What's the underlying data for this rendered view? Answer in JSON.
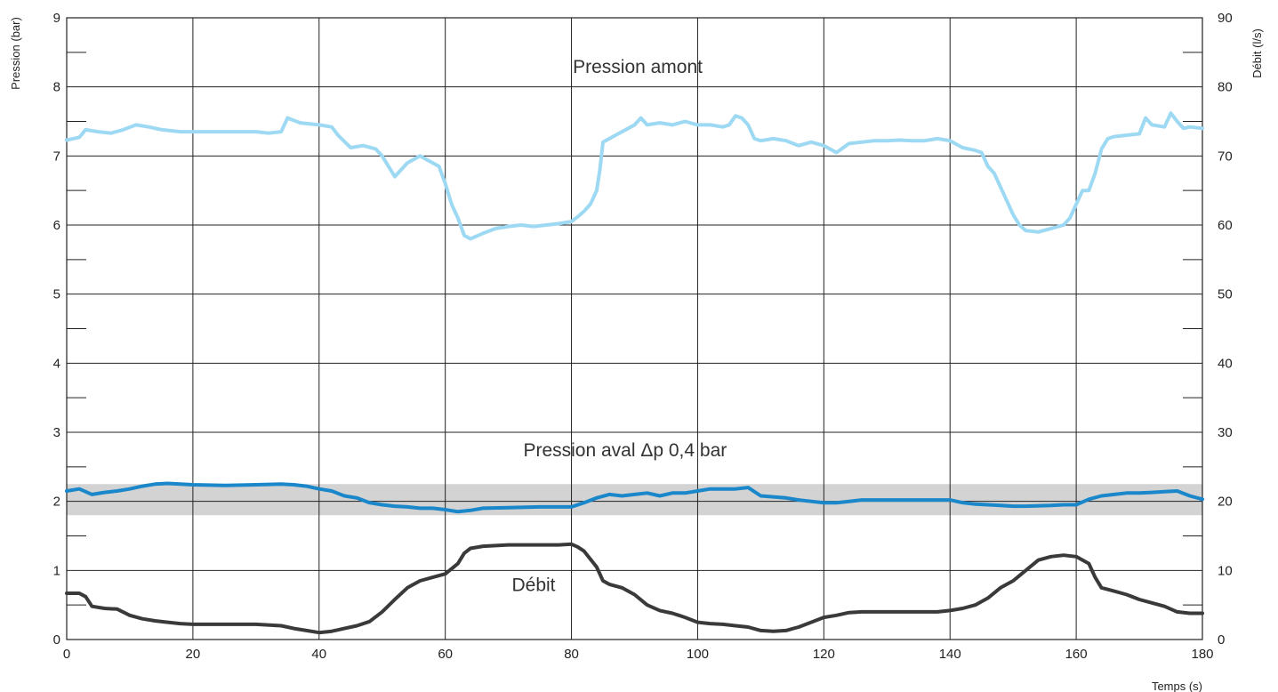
{
  "chart_data": {
    "type": "line",
    "xlabel": "Temps (s)",
    "ylabel_left": "Pression (bar)",
    "ylabel_right": "Débit (l/s)",
    "xlim": [
      0,
      180
    ],
    "ylim_left": [
      0,
      9
    ],
    "ylim_right": [
      0,
      90
    ],
    "x_ticks": [
      "0",
      "20",
      "40",
      "60",
      "80",
      "100",
      "120",
      "140",
      "160",
      "180"
    ],
    "y_left_ticks": [
      "0",
      "1",
      "2",
      "3",
      "4",
      "5",
      "6",
      "7",
      "8",
      "9"
    ],
    "y_right_ticks": [
      "0",
      "10",
      "20",
      "30",
      "40",
      "50",
      "60",
      "70",
      "80",
      "90"
    ],
    "grid": true,
    "band": {
      "from": 1.8,
      "to": 2.25,
      "color": "#d3d3d3"
    },
    "annotations": [
      {
        "id": "amont",
        "text": "Pression amont",
        "x": 90.5,
        "y": 8.2
      },
      {
        "id": "aval",
        "text": "Pression aval Δp 0,4 bar",
        "x": 88.5,
        "y": 2.65
      },
      {
        "id": "debit",
        "text": "Débit",
        "x": 74,
        "y": 0.7
      }
    ],
    "series": [
      {
        "key": "amont",
        "axis": "left",
        "color": "#9dd9f3",
        "x": [
          0,
          2,
          3,
          5,
          7,
          9,
          11,
          13,
          15,
          18,
          20,
          25,
          30,
          32,
          34,
          35,
          37,
          40,
          42,
          43,
          45,
          47,
          49,
          50,
          51,
          52,
          53,
          54,
          55,
          56,
          57,
          58,
          59,
          60,
          61,
          62,
          63,
          64,
          66,
          68,
          70,
          72,
          74,
          76,
          78,
          80,
          81,
          82,
          83,
          84,
          84.5,
          85,
          86,
          87,
          88,
          89,
          90,
          91,
          92,
          94,
          96,
          98,
          100,
          102,
          104,
          105,
          106,
          107,
          108,
          109,
          110,
          112,
          114,
          116,
          118,
          120,
          122,
          124,
          126,
          128,
          130,
          132,
          134,
          136,
          138,
          140,
          142,
          144,
          145,
          146,
          147,
          148,
          149,
          150,
          151,
          152,
          154,
          156,
          158,
          159,
          160,
          161,
          162,
          163,
          164,
          165,
          166,
          168,
          170,
          171,
          172,
          174,
          175,
          176,
          177,
          178,
          180
        ],
        "y": [
          7.23,
          7.27,
          7.38,
          7.35,
          7.33,
          7.38,
          7.45,
          7.42,
          7.38,
          7.35,
          7.35,
          7.35,
          7.35,
          7.33,
          7.35,
          7.55,
          7.48,
          7.45,
          7.42,
          7.3,
          7.12,
          7.15,
          7.1,
          7.0,
          6.85,
          6.7,
          6.8,
          6.9,
          6.95,
          7.0,
          6.95,
          6.9,
          6.85,
          6.6,
          6.3,
          6.1,
          5.85,
          5.8,
          5.88,
          5.95,
          5.98,
          6.0,
          5.98,
          6.0,
          6.02,
          6.05,
          6.12,
          6.2,
          6.3,
          6.5,
          6.8,
          7.2,
          7.25,
          7.3,
          7.35,
          7.4,
          7.45,
          7.55,
          7.45,
          7.48,
          7.45,
          7.5,
          7.45,
          7.45,
          7.42,
          7.45,
          7.58,
          7.55,
          7.45,
          7.25,
          7.22,
          7.25,
          7.22,
          7.15,
          7.2,
          7.15,
          7.05,
          7.18,
          7.2,
          7.22,
          7.22,
          7.23,
          7.22,
          7.22,
          7.25,
          7.22,
          7.12,
          7.08,
          7.05,
          6.85,
          6.75,
          6.55,
          6.35,
          6.15,
          6.0,
          5.92,
          5.9,
          5.95,
          6.0,
          6.1,
          6.3,
          6.5,
          6.5,
          6.75,
          7.1,
          7.25,
          7.28,
          7.3,
          7.32,
          7.55,
          7.45,
          7.42,
          7.62,
          7.5,
          7.4,
          7.42,
          7.4
        ]
      },
      {
        "key": "aval",
        "axis": "left",
        "color": "#1b87cb",
        "x": [
          0,
          2,
          4,
          6,
          8,
          10,
          12,
          14,
          16,
          18,
          20,
          25,
          30,
          34,
          36,
          38,
          40,
          42,
          44,
          46,
          48,
          50,
          52,
          54,
          56,
          58,
          60,
          62,
          64,
          66,
          70,
          75,
          80,
          82,
          84,
          86,
          88,
          90,
          92,
          94,
          96,
          98,
          100,
          102,
          104,
          106,
          108,
          110,
          114,
          116,
          118,
          120,
          122,
          124,
          126,
          130,
          134,
          138,
          140,
          142,
          144,
          146,
          148,
          150,
          152,
          156,
          158,
          160,
          162,
          164,
          166,
          168,
          170,
          172,
          174,
          176,
          178,
          180
        ],
        "y": [
          2.15,
          2.18,
          2.1,
          2.13,
          2.15,
          2.18,
          2.22,
          2.25,
          2.26,
          2.25,
          2.24,
          2.23,
          2.24,
          2.25,
          2.24,
          2.22,
          2.18,
          2.15,
          2.08,
          2.05,
          1.98,
          1.95,
          1.93,
          1.92,
          1.9,
          1.9,
          1.88,
          1.85,
          1.87,
          1.9,
          1.91,
          1.92,
          1.92,
          1.98,
          2.05,
          2.1,
          2.08,
          2.1,
          2.12,
          2.08,
          2.12,
          2.12,
          2.15,
          2.18,
          2.18,
          2.18,
          2.2,
          2.08,
          2.05,
          2.02,
          2.0,
          1.98,
          1.98,
          2.0,
          2.02,
          2.02,
          2.02,
          2.02,
          2.02,
          1.98,
          1.96,
          1.95,
          1.94,
          1.93,
          1.93,
          1.94,
          1.95,
          1.95,
          2.03,
          2.08,
          2.1,
          2.12,
          2.12,
          2.13,
          2.14,
          2.15,
          2.08,
          2.03
        ]
      },
      {
        "key": "debit",
        "axis": "right",
        "color": "#3a3a3a",
        "x": [
          0,
          2,
          3,
          4,
          6,
          8,
          10,
          12,
          14,
          16,
          18,
          20,
          25,
          30,
          34,
          36,
          38,
          40,
          42,
          44,
          46,
          48,
          50,
          52,
          54,
          56,
          58,
          60,
          62,
          63,
          64,
          66,
          68,
          70,
          72,
          74,
          76,
          78,
          80,
          81,
          82,
          84,
          85,
          86,
          88,
          90,
          92,
          94,
          96,
          98,
          100,
          102,
          104,
          106,
          108,
          110,
          112,
          114,
          116,
          118,
          120,
          122,
          124,
          126,
          130,
          134,
          138,
          140,
          142,
          144,
          146,
          148,
          150,
          152,
          154,
          156,
          158,
          160,
          162,
          163,
          164,
          166,
          168,
          170,
          172,
          174,
          176,
          178,
          180
        ],
        "y": [
          6.7,
          6.7,
          6.2,
          4.8,
          4.5,
          4.4,
          3.5,
          3.0,
          2.7,
          2.5,
          2.3,
          2.2,
          2.2,
          2.2,
          2.0,
          1.6,
          1.3,
          1.0,
          1.2,
          1.6,
          2.0,
          2.6,
          4.0,
          5.8,
          7.5,
          8.5,
          9.0,
          9.5,
          11.0,
          12.5,
          13.2,
          13.5,
          13.6,
          13.7,
          13.7,
          13.7,
          13.7,
          13.7,
          13.8,
          13.4,
          12.8,
          10.5,
          8.5,
          8.0,
          7.5,
          6.5,
          5.0,
          4.2,
          3.8,
          3.2,
          2.5,
          2.3,
          2.2,
          2.0,
          1.8,
          1.3,
          1.2,
          1.3,
          1.8,
          2.5,
          3.2,
          3.5,
          3.9,
          4.0,
          4.0,
          4.0,
          4.0,
          4.2,
          4.5,
          5.0,
          6.0,
          7.5,
          8.5,
          10.0,
          11.5,
          12.0,
          12.2,
          12.0,
          11.0,
          9.0,
          7.5,
          7.0,
          6.5,
          5.8,
          5.3,
          4.8,
          4.0,
          3.8,
          3.8
        ]
      }
    ]
  }
}
